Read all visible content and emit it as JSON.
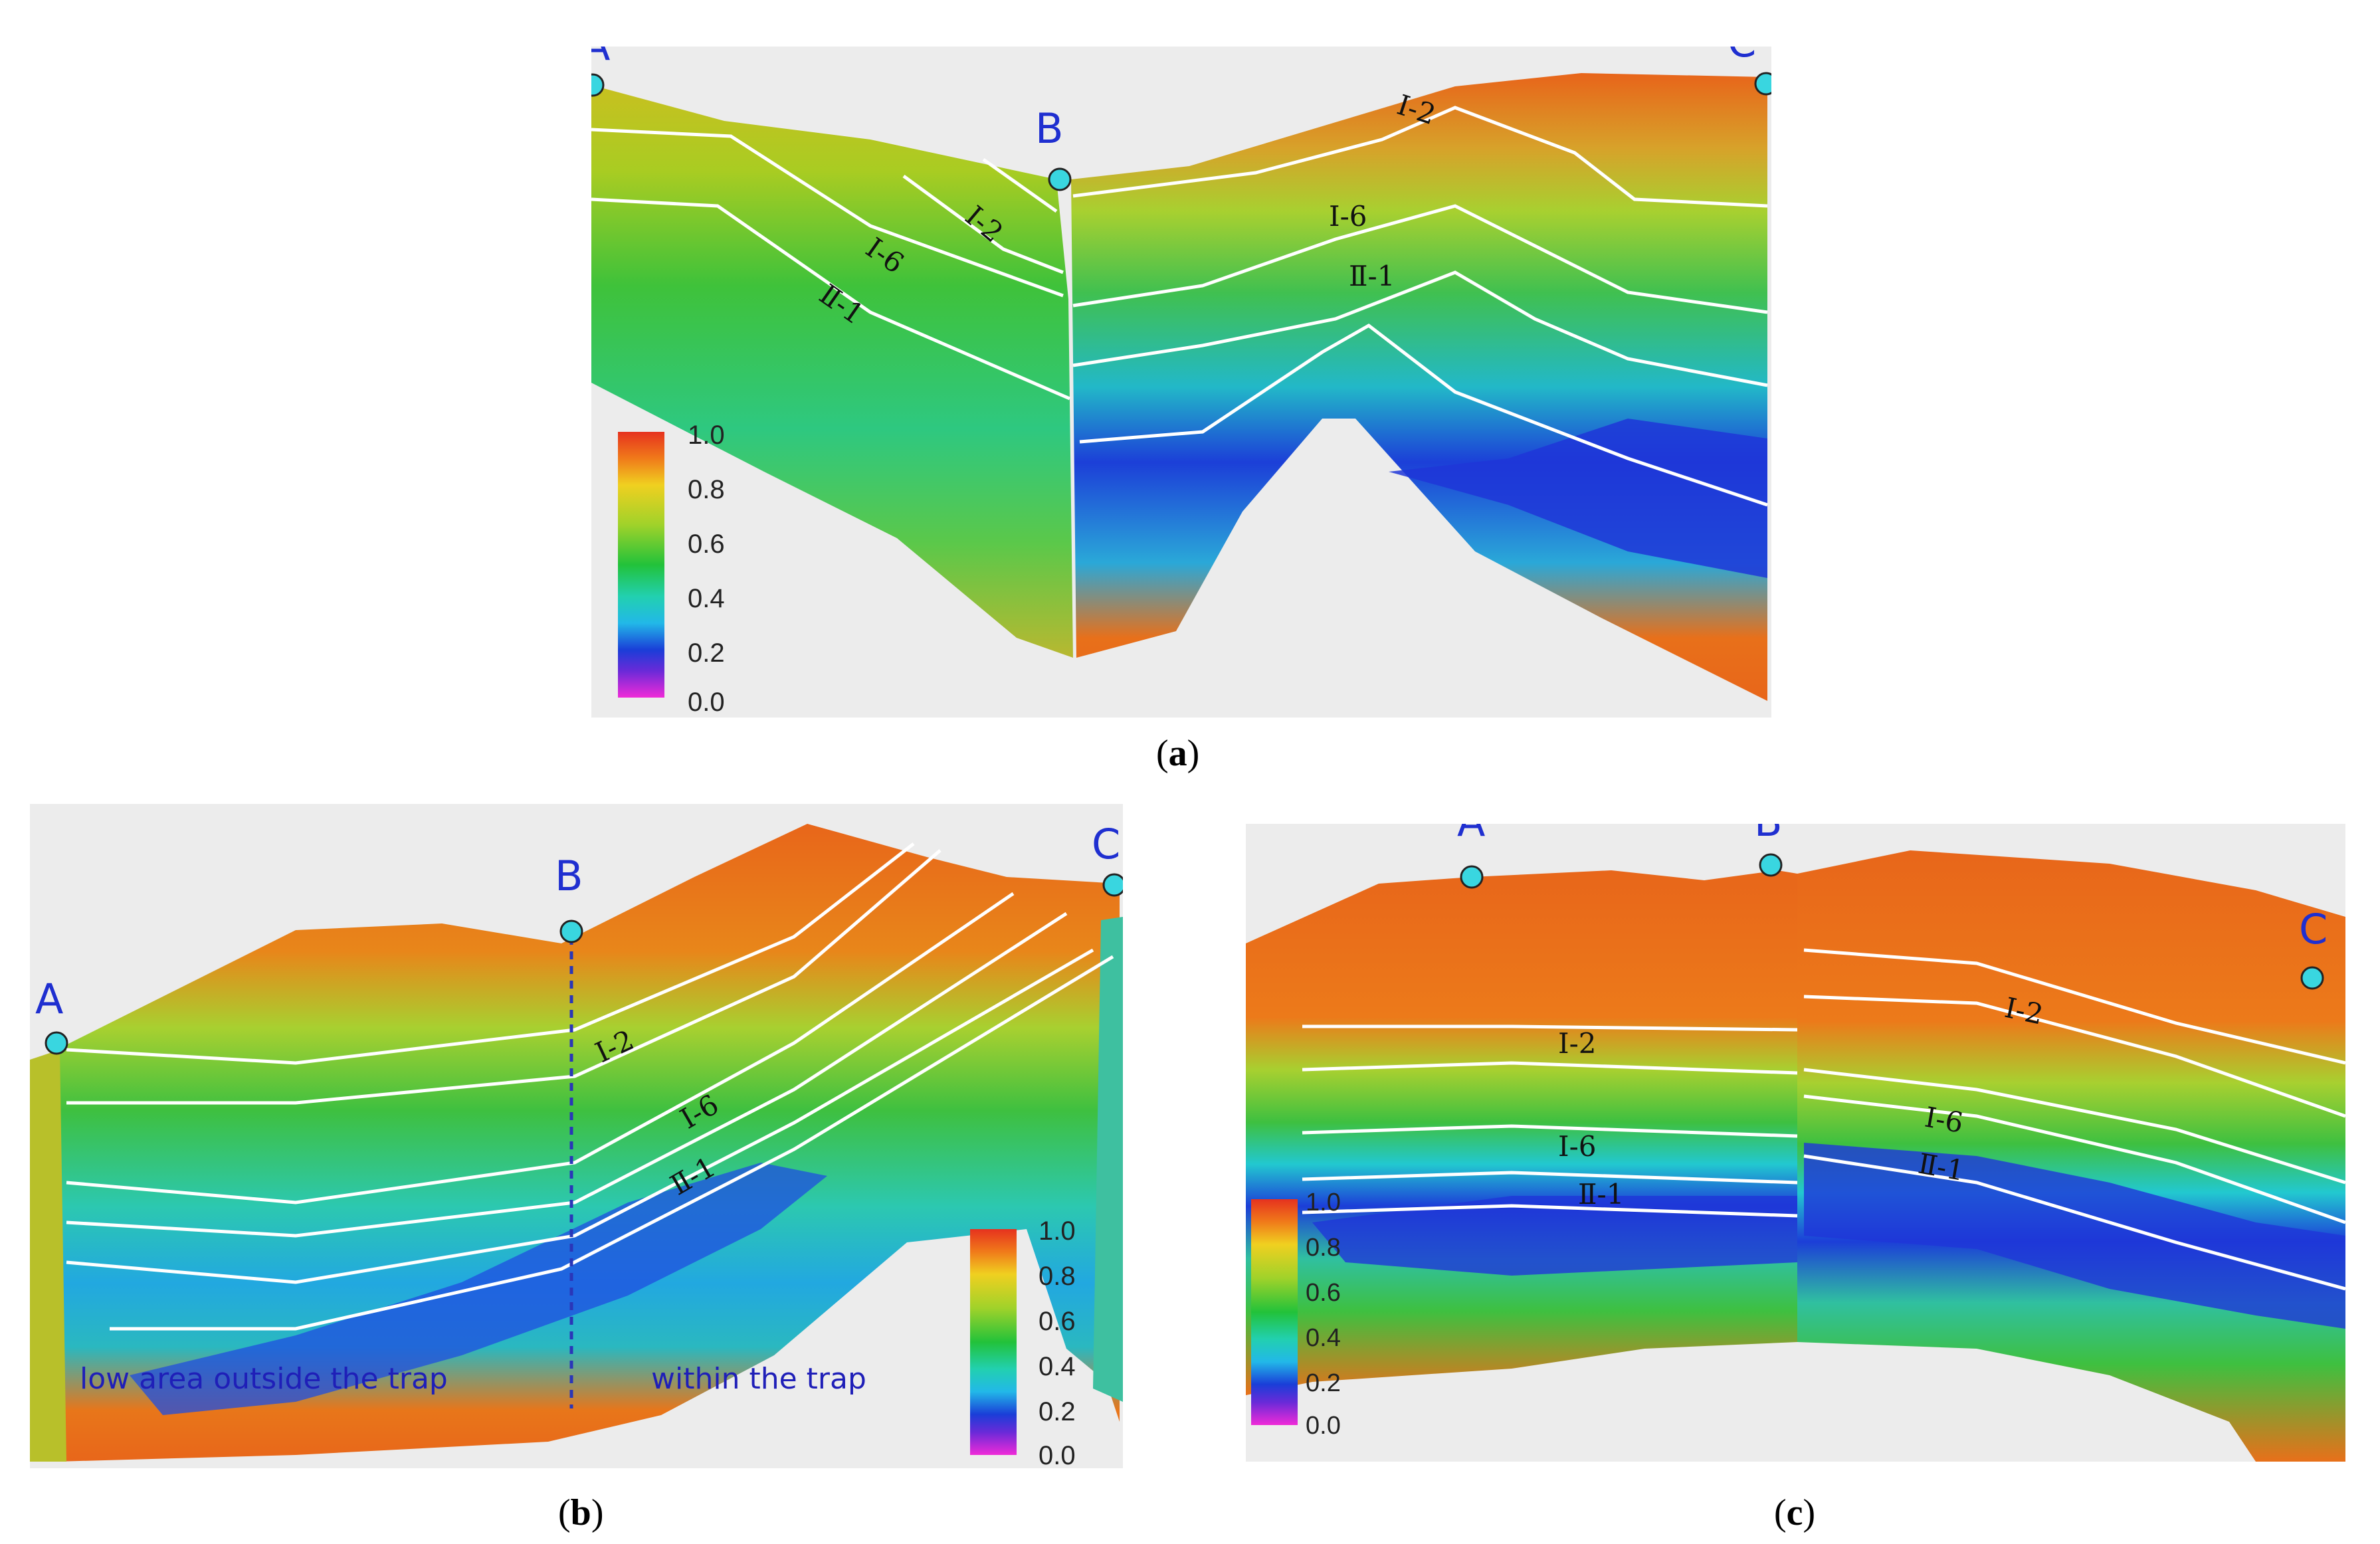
{
  "panels": {
    "a": {
      "caption_open": "(",
      "caption_letter": "a",
      "caption_close": ")",
      "wells": [
        "A",
        "B",
        "C"
      ],
      "horizons": [
        "Ⅰ-2",
        "Ⅰ-6",
        "Ⅱ-1"
      ],
      "horizon_labels_left": [
        "Ⅰ-2",
        "Ⅰ-6",
        "Ⅱ-1"
      ],
      "horizon_labels_right": [
        "Ⅰ-2",
        "Ⅰ-6",
        "Ⅱ-1"
      ],
      "colorbar_ticks": [
        "1.0",
        "0.8",
        "0.6",
        "0.4",
        "0.2",
        "0.0"
      ]
    },
    "b": {
      "caption_open": "(",
      "caption_letter": "b",
      "caption_close": ")",
      "wells": [
        "A",
        "B",
        "C"
      ],
      "horizon_labels": [
        "Ⅰ-2",
        "Ⅰ-6",
        "Ⅱ-1"
      ],
      "notes": [
        "low area outside the trap",
        "within the trap"
      ],
      "colorbar_ticks": [
        "1.0",
        "0.8",
        "0.6",
        "0.4",
        "0.2",
        "0.0"
      ]
    },
    "c": {
      "caption_open": "(",
      "caption_letter": "c",
      "caption_close": ")",
      "wells": [
        "A",
        "B",
        "C"
      ],
      "horizon_labels_left": [
        "Ⅰ-2",
        "Ⅰ-6",
        "Ⅱ-1"
      ],
      "horizon_labels_right": [
        "Ⅰ-2",
        "Ⅰ-6",
        "Ⅱ-1"
      ],
      "colorbar_ticks": [
        "1.0",
        "0.8",
        "0.6",
        "0.4",
        "0.2",
        "0.0"
      ]
    }
  },
  "colors": {
    "well_marker": "#39d6e0",
    "horizon_line": "#ffffff",
    "well_text": "#1f2fd0"
  }
}
